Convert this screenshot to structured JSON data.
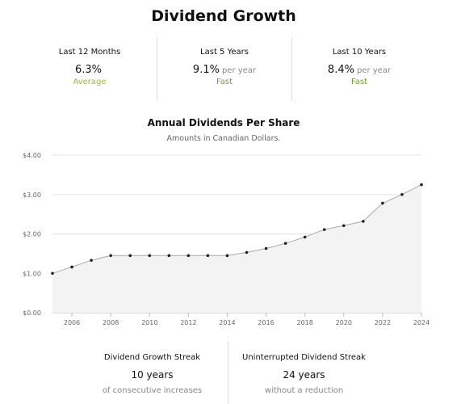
{
  "page_title": "Dividend Growth",
  "stats": [
    {
      "label": "Last 12 Months",
      "value": "6.3%",
      "unit": "",
      "rating": "Average"
    },
    {
      "label": "Last 5 Years",
      "value": "9.1%",
      "unit": "per year",
      "rating": "Fast"
    },
    {
      "label": "Last 10 Years",
      "value": "8.4%",
      "unit": "per year",
      "rating": "Fast"
    }
  ],
  "chart_data": {
    "type": "area",
    "title": "Annual Dividends Per Share",
    "subtitle": "Amounts in Canadian Dollars.",
    "xlabel": "",
    "ylabel": "",
    "x": [
      2005,
      2006,
      2007,
      2008,
      2009,
      2010,
      2011,
      2012,
      2013,
      2014,
      2015,
      2016,
      2017,
      2018,
      2019,
      2020,
      2021,
      2022,
      2023,
      2024
    ],
    "values": [
      1.0,
      1.16,
      1.33,
      1.45,
      1.45,
      1.45,
      1.45,
      1.45,
      1.45,
      1.45,
      1.53,
      1.63,
      1.76,
      1.92,
      2.11,
      2.21,
      2.32,
      2.78,
      3.0,
      3.25
    ],
    "xlim": [
      2005,
      2024
    ],
    "ylim": [
      0,
      4
    ],
    "x_ticks": [
      2006,
      2008,
      2010,
      2012,
      2014,
      2016,
      2018,
      2020,
      2022,
      2024
    ],
    "y_ticks": [
      "$0.00",
      "$1.00",
      "$2.00",
      "$3.00",
      "$4.00"
    ],
    "grid": true,
    "line_color": "#aaaaaa",
    "fill_color": "#f3f3f3",
    "point_color": "#222222"
  },
  "streaks": [
    {
      "label": "Dividend Growth Streak",
      "value": "10 years",
      "note": "of consecutive increases"
    },
    {
      "label": "Uninterrupted Dividend Streak",
      "value": "24 years",
      "note": "without a reduction"
    }
  ]
}
